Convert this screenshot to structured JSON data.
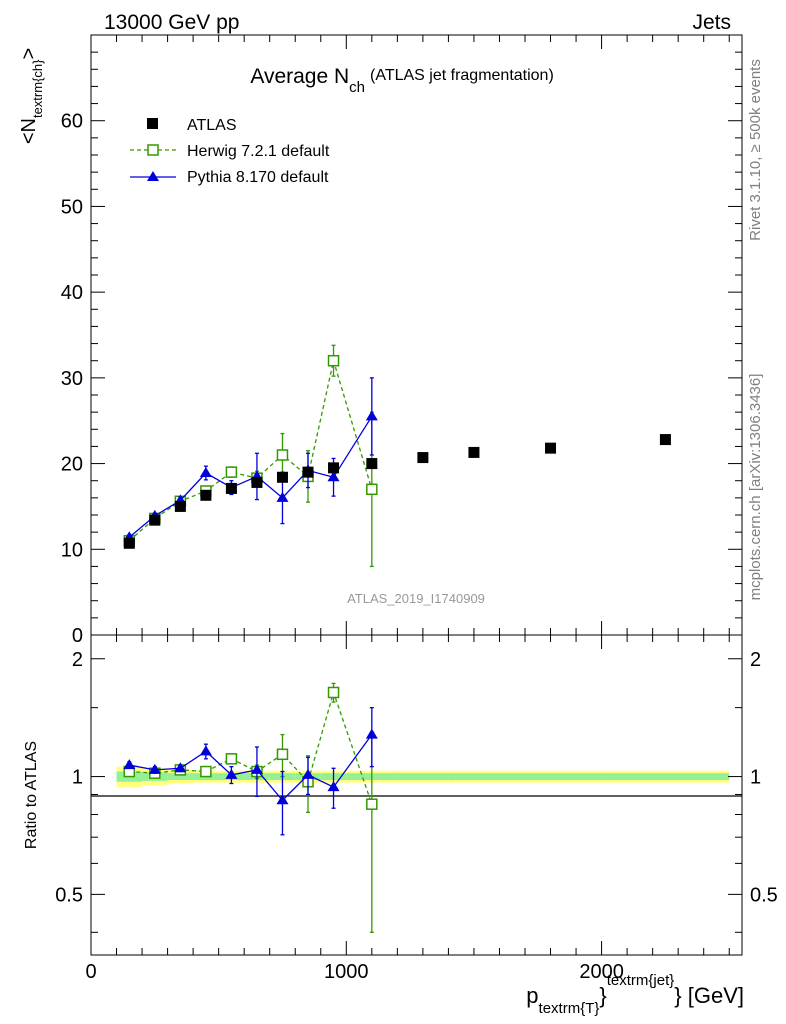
{
  "header": {
    "left": "13000 GeV pp",
    "right": "Jets"
  },
  "side_labels": {
    "rivet": "Rivet 3.1.10, ≥ 500k events",
    "mcplots": "mcplots.cern.ch [arXiv:1306.3436]"
  },
  "watermark": "ATLAS_2019_I1740909",
  "chart_data": [
    {
      "type": "scatter",
      "title_main": "Average N",
      "title_sub": "ch",
      "title_note": "(ATLAS jet fragmentation)",
      "ylabel_main": "<N",
      "ylabel_sub": "textrm{ch}",
      "ylabel_end": ">",
      "ylim": [
        0,
        70
      ],
      "yticks": [
        0,
        10,
        20,
        30,
        40,
        50,
        60
      ],
      "xlim": [
        0,
        2550
      ],
      "legend_placement": "top-left",
      "series": [
        {
          "name": "ATLAS",
          "color": "#000000",
          "marker": "filled-square",
          "x": [
            150,
            250,
            350,
            450,
            550,
            650,
            750,
            850,
            950,
            1100,
            1300,
            1500,
            1800,
            2250
          ],
          "y": [
            10.7,
            13.4,
            15.0,
            16.3,
            17.1,
            17.8,
            18.4,
            19.0,
            19.5,
            20.0,
            20.7,
            21.3,
            21.8,
            22.8
          ]
        },
        {
          "name": "Herwig 7.2.1 default",
          "color": "#339900",
          "marker": "open-square",
          "line": "dashed",
          "x": [
            150,
            250,
            350,
            450,
            550,
            650,
            750,
            850,
            950,
            1100
          ],
          "y": [
            11.0,
            13.6,
            15.6,
            16.8,
            19.0,
            18.3,
            21.0,
            18.5,
            32.0,
            17.0
          ],
          "err": [
            0.3,
            0.3,
            0.4,
            0.4,
            0.6,
            0.8,
            2.5,
            3.0,
            1.8,
            9.0
          ]
        },
        {
          "name": "Pythia 8.170 default",
          "color": "#0000dd",
          "marker": "filled-triangle",
          "line": "solid",
          "x": [
            150,
            250,
            350,
            450,
            550,
            650,
            750,
            850,
            950,
            1100
          ],
          "y": [
            11.4,
            13.9,
            15.7,
            18.9,
            17.2,
            18.5,
            16.0,
            19.2,
            18.4,
            25.5
          ],
          "err": [
            0.3,
            0.3,
            0.4,
            0.8,
            0.8,
            2.7,
            3.0,
            2.0,
            2.2,
            4.5
          ]
        }
      ]
    },
    {
      "type": "scatter",
      "ylabel": "Ratio to ATLAS",
      "ylim": [
        0.35,
        2.3
      ],
      "yticks": [
        0.5,
        1,
        2
      ],
      "ytick_labels": [
        "0.5",
        "1",
        "2"
      ],
      "xlim": [
        0,
        2550
      ],
      "xticks": [
        0,
        1000,
        2000
      ],
      "xtick_labels": [
        "0",
        "1000",
        "2000"
      ],
      "xlabel_main": "p",
      "xlabel_sub": "textrm{T}",
      "xlabel_sup": "textrm{jet}",
      "xlabel_unit": "[GeV]",
      "band": {
        "x": [
          100,
          200,
          300,
          400,
          500,
          600,
          700,
          800,
          900,
          1000,
          1200,
          1400,
          1600,
          2000,
          2500
        ],
        "inner": [
          0.03,
          0.025,
          0.02,
          0.02,
          0.02,
          0.02,
          0.02,
          0.02,
          0.02,
          0.02,
          0.02,
          0.02,
          0.02,
          0.02
        ],
        "outer": [
          0.06,
          0.05,
          0.04,
          0.035,
          0.035,
          0.035,
          0.035,
          0.035,
          0.035,
          0.035,
          0.035,
          0.035,
          0.035,
          0.035
        ]
      },
      "series": [
        {
          "name": "Herwig 7.2.1 default",
          "color": "#339900",
          "marker": "open-square",
          "line": "dashed",
          "x": [
            150,
            250,
            350,
            450,
            550,
            650,
            750,
            850,
            950,
            1100
          ],
          "y": [
            1.03,
            1.02,
            1.04,
            1.03,
            1.11,
            1.03,
            1.14,
            0.97,
            1.64,
            0.85
          ],
          "err": [
            0.02,
            0.02,
            0.02,
            0.02,
            0.03,
            0.04,
            0.14,
            0.16,
            0.09,
            0.45
          ]
        },
        {
          "name": "Pythia 8.170 default",
          "color": "#0000dd",
          "marker": "filled-triangle",
          "line": "solid",
          "x": [
            150,
            250,
            350,
            450,
            550,
            650,
            750,
            850,
            950,
            1100
          ],
          "y": [
            1.07,
            1.04,
            1.05,
            1.16,
            1.01,
            1.04,
            0.87,
            1.01,
            0.94,
            1.28
          ],
          "err": [
            0.02,
            0.02,
            0.02,
            0.05,
            0.05,
            0.15,
            0.16,
            0.11,
            0.11,
            0.22
          ]
        }
      ]
    }
  ]
}
